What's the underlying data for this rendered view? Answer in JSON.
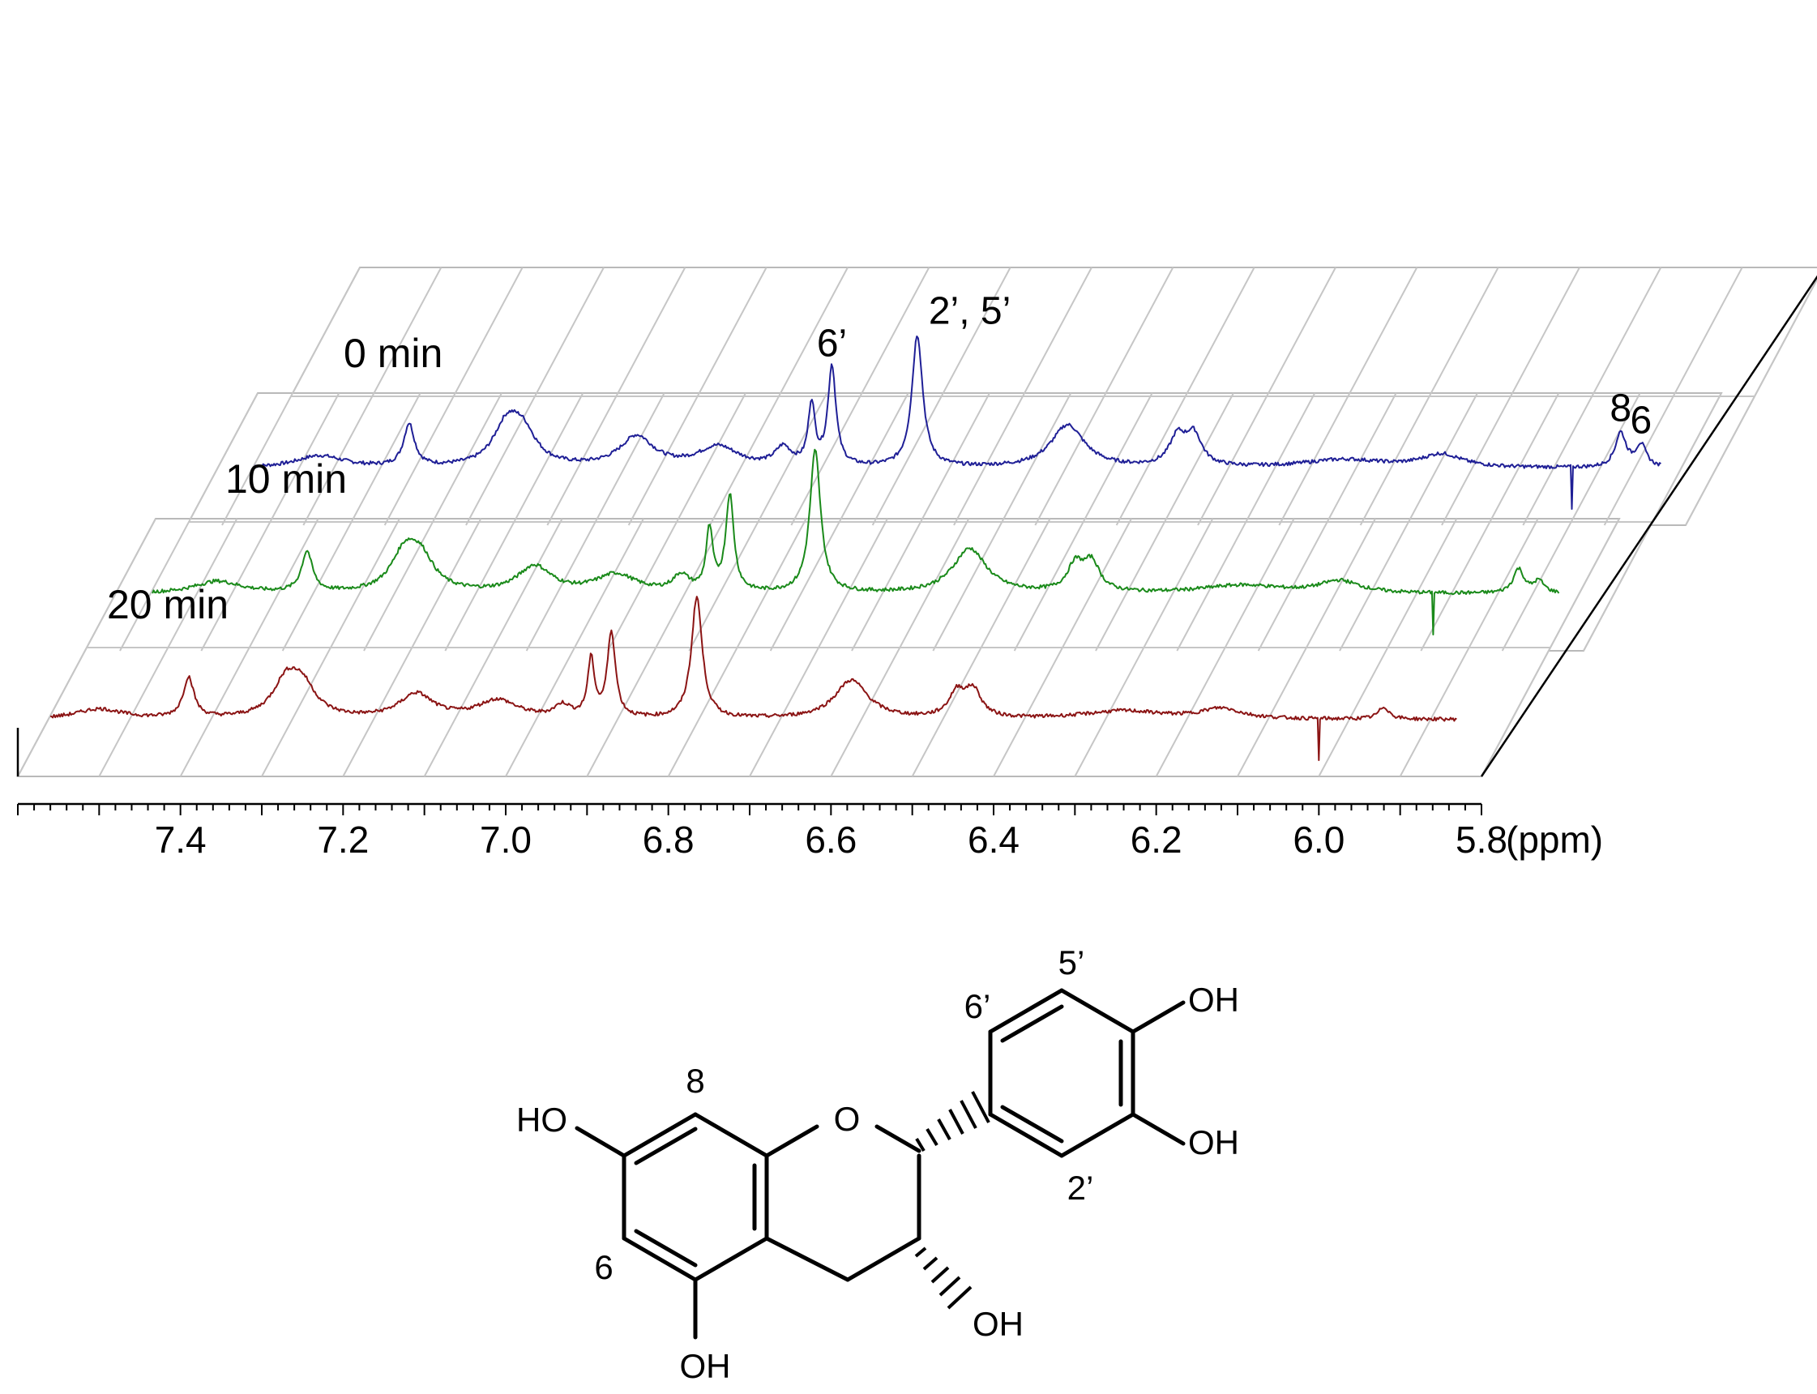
{
  "chart_data": {
    "type": "line",
    "style": "stacked 3D waterfall NMR spectra",
    "xlabel": "(ppm)",
    "xlim": [
      7.6,
      5.8
    ],
    "x_reversed": true,
    "x_ticks": [
      7.4,
      7.2,
      7.0,
      6.8,
      6.6,
      6.4,
      6.2,
      6.0,
      5.8
    ],
    "x_tick_labels": [
      "7.4",
      "7.2",
      "7.0",
      "6.8",
      "6.6",
      "6.4",
      "6.2",
      "6.0",
      "5.8"
    ],
    "grid": true,
    "series": [
      {
        "name": "0 min",
        "color": "#1f1f96",
        "peaks": [
          {
            "ppm": 7.48,
            "height": 0.12,
            "width": 0.035
          },
          {
            "ppm": 7.37,
            "height": 0.42,
            "width": 0.008
          },
          {
            "ppm": 7.25,
            "height": 0.38,
            "width": 0.02
          },
          {
            "ppm": 7.23,
            "height": 0.3,
            "width": 0.02
          },
          {
            "ppm": 7.09,
            "height": 0.3,
            "width": 0.025
          },
          {
            "ppm": 6.99,
            "height": 0.2,
            "width": 0.03
          },
          {
            "ppm": 6.91,
            "height": 0.18,
            "width": 0.012
          },
          {
            "ppm": 6.875,
            "height": 0.6,
            "width": 0.005
          },
          {
            "ppm": 6.85,
            "height": 0.98,
            "width": 0.006
          },
          {
            "ppm": 6.745,
            "height": 1.3,
            "width": 0.008
          },
          {
            "ppm": 6.56,
            "height": 0.42,
            "width": 0.025
          },
          {
            "ppm": 6.425,
            "height": 0.28,
            "width": 0.012
          },
          {
            "ppm": 6.405,
            "height": 0.3,
            "width": 0.012
          },
          {
            "ppm": 6.22,
            "height": 0.08,
            "width": 0.06
          },
          {
            "ppm": 6.1,
            "height": 0.13,
            "width": 0.03
          },
          {
            "ppm": 5.88,
            "height": 0.34,
            "width": 0.008
          },
          {
            "ppm": 5.855,
            "height": 0.22,
            "width": 0.008
          }
        ],
        "spike_ppm": 5.94
      },
      {
        "name": "10 min",
        "color": "#1a8a1a",
        "peaks": [
          {
            "ppm": 7.48,
            "height": 0.12,
            "width": 0.035
          },
          {
            "ppm": 7.37,
            "height": 0.4,
            "width": 0.008
          },
          {
            "ppm": 7.25,
            "height": 0.36,
            "width": 0.02
          },
          {
            "ppm": 7.23,
            "height": 0.3,
            "width": 0.02
          },
          {
            "ppm": 7.09,
            "height": 0.26,
            "width": 0.025
          },
          {
            "ppm": 6.99,
            "height": 0.18,
            "width": 0.03
          },
          {
            "ppm": 6.91,
            "height": 0.16,
            "width": 0.012
          },
          {
            "ppm": 6.875,
            "height": 0.6,
            "width": 0.005
          },
          {
            "ppm": 6.85,
            "height": 0.95,
            "width": 0.006
          },
          {
            "ppm": 6.745,
            "height": 1.4,
            "width": 0.008
          },
          {
            "ppm": 6.555,
            "height": 0.44,
            "width": 0.025
          },
          {
            "ppm": 6.425,
            "height": 0.26,
            "width": 0.012
          },
          {
            "ppm": 6.405,
            "height": 0.28,
            "width": 0.012
          },
          {
            "ppm": 6.22,
            "height": 0.08,
            "width": 0.06
          },
          {
            "ppm": 6.1,
            "height": 0.12,
            "width": 0.03
          },
          {
            "ppm": 5.88,
            "height": 0.24,
            "width": 0.008
          },
          {
            "ppm": 5.855,
            "height": 0.12,
            "width": 0.008
          }
        ],
        "spike_ppm": 5.985
      },
      {
        "name": "20 min",
        "color": "#8b1414",
        "peaks": [
          {
            "ppm": 7.5,
            "height": 0.1,
            "width": 0.035
          },
          {
            "ppm": 7.39,
            "height": 0.4,
            "width": 0.008
          },
          {
            "ppm": 7.27,
            "height": 0.34,
            "width": 0.02
          },
          {
            "ppm": 7.25,
            "height": 0.28,
            "width": 0.02
          },
          {
            "ppm": 7.11,
            "height": 0.24,
            "width": 0.025
          },
          {
            "ppm": 7.01,
            "height": 0.18,
            "width": 0.03
          },
          {
            "ppm": 6.93,
            "height": 0.12,
            "width": 0.012
          },
          {
            "ppm": 6.895,
            "height": 0.56,
            "width": 0.005
          },
          {
            "ppm": 6.87,
            "height": 0.84,
            "width": 0.006
          },
          {
            "ppm": 6.765,
            "height": 1.2,
            "width": 0.008
          },
          {
            "ppm": 6.575,
            "height": 0.38,
            "width": 0.025
          },
          {
            "ppm": 6.445,
            "height": 0.24,
            "width": 0.012
          },
          {
            "ppm": 6.425,
            "height": 0.26,
            "width": 0.012
          },
          {
            "ppm": 6.24,
            "height": 0.08,
            "width": 0.06
          },
          {
            "ppm": 6.12,
            "height": 0.1,
            "width": 0.03
          },
          {
            "ppm": 5.92,
            "height": 0.12,
            "width": 0.008
          }
        ],
        "spike_ppm": 6.0
      }
    ],
    "annotations": [
      {
        "text": "6’",
        "series": "0 min",
        "ppm": 6.85
      },
      {
        "text": "2’, 5’",
        "series": "0 min",
        "ppm": 6.745
      },
      {
        "text": "8",
        "series": "0 min",
        "ppm": 5.88
      },
      {
        "text": "6",
        "series": "0 min",
        "ppm": 5.855
      }
    ]
  },
  "structure": {
    "atom_labels": {
      "ho7": "HO",
      "oh5": "OH",
      "oh3": "OH",
      "oh3p": "OH",
      "oh4p": "OH",
      "ring_o": "O"
    },
    "position_labels": {
      "p8": "8",
      "p6": "6",
      "p6p": "6’",
      "p5p": "5’",
      "p2p": "2’"
    }
  }
}
